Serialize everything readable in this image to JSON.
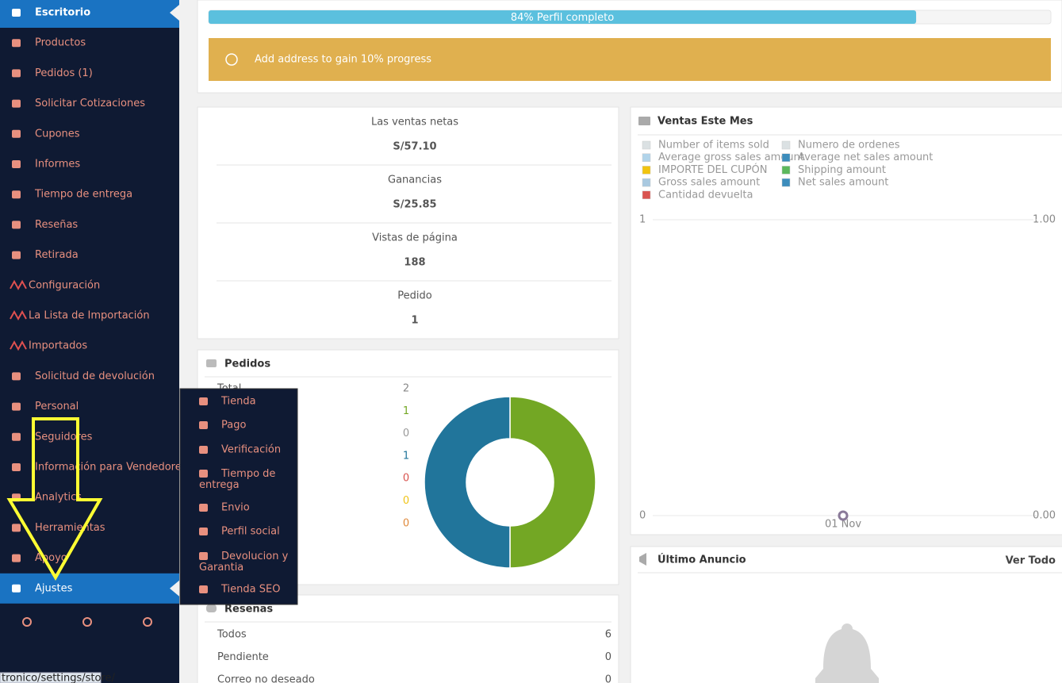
{
  "sidebar": {
    "items": [
      "Escritorio",
      "Productos",
      "Pedidos (1)",
      "Solicitar Cotizaciones",
      "Cupones",
      "Informes",
      "Tiempo de entrega",
      "Reseñas",
      "Retirada",
      "Configuración",
      "La Lista de Importación",
      "Importados",
      "Solicitud de devolución",
      "Personal",
      "Seguidores",
      "Información para Vendedores",
      "Analytics",
      "Herramientas",
      "Apoyo",
      "Ajustes"
    ]
  },
  "submenu": {
    "items": [
      "Tienda",
      "Pago",
      "Verificación",
      "Tiempo de entrega",
      "Envio",
      "Perfil social",
      "Devolucion y Garantia",
      "Tienda SEO"
    ]
  },
  "progress": {
    "label": "84% Perfil completo",
    "value": 84
  },
  "notice": "Add address  to gain 10% progress",
  "summary": [
    {
      "label": "Las ventas netas",
      "value": "S/57.10"
    },
    {
      "label": "Ganancias",
      "value": "S/25.85"
    },
    {
      "label": "Vistas de página",
      "value": "188"
    },
    {
      "label": "Pedido",
      "value": "1"
    }
  ],
  "orders": {
    "title": "Pedidos",
    "rows": [
      {
        "label": "Total",
        "value": 2,
        "color": "#888888"
      },
      {
        "label": null,
        "value": 1,
        "color": "#73a724"
      },
      {
        "label": null,
        "value": 0,
        "color": "#999999"
      },
      {
        "label": null,
        "value": 1,
        "color": "#21759b"
      },
      {
        "label": null,
        "value": 0,
        "color": "#d9534f"
      },
      {
        "label": null,
        "value": 0,
        "color": "#f0c419"
      },
      {
        "label": null,
        "value": 0,
        "color": "#e08a3c"
      }
    ],
    "donut": {
      "type": "pie",
      "values": [
        1,
        1
      ],
      "colors": [
        "#73a724",
        "#21759b"
      ]
    }
  },
  "reviews": {
    "title": "Reseñas",
    "rows": [
      {
        "label": "Todos",
        "value": 6
      },
      {
        "label": "Pendiente",
        "value": 0
      },
      {
        "label": "Correo no deseado",
        "value": 0
      }
    ]
  },
  "sales_chart": {
    "type": "line",
    "title": "Ventas Este Mes",
    "legend": [
      {
        "name": "Number of items sold",
        "color": "#dbe1e3"
      },
      {
        "name": "Numero de ordenes",
        "color": "#dbe1e3"
      },
      {
        "name": "Average gross sales amount",
        "color": "#b1d4ea"
      },
      {
        "name": "Average net sales amount",
        "color": "#3c8dbc"
      },
      {
        "name": "IMPORTE DEL CUPÓN",
        "color": "#f1c40f"
      },
      {
        "name": "Shipping amount",
        "color": "#5cb85c"
      },
      {
        "name": "Gross sales amount",
        "color": "#a9c9e0"
      },
      {
        "name": "Net sales amount",
        "color": "#3c8dbc"
      },
      {
        "name": "Cantidad devuelta",
        "color": "#d9534f"
      }
    ],
    "categories": [
      "01 Nov"
    ],
    "values": [
      0
    ],
    "ylim": [
      0,
      1
    ],
    "yticks": [
      0,
      1
    ],
    "y2lim": [
      0,
      1
    ],
    "y2ticks": [
      {
        "value": 0,
        "label": "0.00"
      },
      {
        "value": 1,
        "label": "1.00"
      }
    ]
  },
  "announcement": {
    "title": "Último Anuncio",
    "link": "Ver Todo"
  },
  "status_bar": "tronico/settings/store/"
}
